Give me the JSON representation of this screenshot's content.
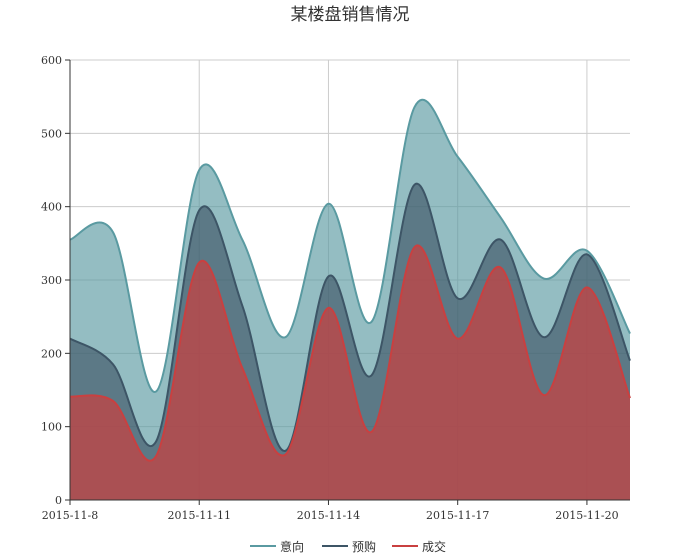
{
  "chart_data": {
    "type": "area",
    "title": "某楼盘销售情况",
    "xlabel": "",
    "ylabel": "",
    "ylim": [
      0,
      600
    ],
    "yticks": [
      0,
      100,
      200,
      300,
      400,
      500,
      600
    ],
    "x": [
      "2015-11-8",
      "2015-11-9",
      "2015-11-10",
      "2015-11-11",
      "2015-11-12",
      "2015-11-13",
      "2015-11-14",
      "2015-11-15",
      "2015-11-16",
      "2015-11-17",
      "2015-11-18",
      "2015-11-19",
      "2015-11-20",
      "2015-11-21"
    ],
    "xtick_labels": [
      "2015-11-8",
      "2015-11-11",
      "2015-11-14",
      "2015-11-17",
      "2015-11-20"
    ],
    "grid": true,
    "legend_position": "bottom-center",
    "series": [
      {
        "name": "意向",
        "color": "#5a9aa1",
        "values": [
          355,
          365,
          148,
          450,
          355,
          222,
          404,
          243,
          536,
          468,
          385,
          302,
          340,
          227
        ]
      },
      {
        "name": "预购",
        "color": "#3d5566",
        "values": [
          220,
          185,
          80,
          395,
          265,
          67,
          305,
          170,
          430,
          275,
          355,
          222,
          335,
          190
        ]
      },
      {
        "name": "成交",
        "color": "#c94040",
        "values": [
          141,
          135,
          60,
          324,
          180,
          62,
          262,
          93,
          345,
          220,
          317,
          143,
          290,
          139
        ]
      }
    ]
  }
}
